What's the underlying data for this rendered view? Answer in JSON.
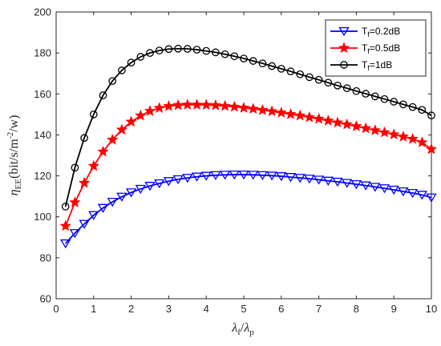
{
  "chart_data": {
    "type": "line",
    "xlabel": "λf/λp",
    "ylabel": "ηEE(bit/s/m⁻²/w)",
    "xlim": [
      0,
      10
    ],
    "ylim": [
      60,
      200
    ],
    "xticks": [
      0,
      1,
      2,
      3,
      4,
      5,
      6,
      7,
      8,
      9,
      10
    ],
    "yticks": [
      60,
      80,
      100,
      120,
      140,
      160,
      180,
      200
    ],
    "grid": false,
    "legend_position": "top-right",
    "x": [
      0.25,
      0.5,
      0.75,
      1.0,
      1.25,
      1.5,
      1.75,
      2.0,
      2.25,
      2.5,
      2.75,
      3.0,
      3.25,
      3.5,
      3.75,
      4.0,
      4.25,
      4.5,
      4.75,
      5.0,
      5.25,
      5.5,
      5.75,
      6.0,
      6.25,
      6.5,
      6.75,
      7.0,
      7.25,
      7.5,
      7.75,
      8.0,
      8.25,
      8.5,
      8.75,
      9.0,
      9.25,
      9.5,
      9.75,
      10.0
    ],
    "series": [
      {
        "name": "Tf=0.2dB",
        "name_parts": [
          "T",
          "f",
          "=0.2dB"
        ],
        "color": "#0000ff",
        "marker": "triangle-down",
        "values": [
          87.0,
          92.0,
          96.5,
          100.8,
          104.3,
          107.3,
          109.8,
          111.9,
          113.6,
          115.1,
          116.3,
          117.4,
          118.3,
          119.0,
          119.6,
          120.0,
          120.3,
          120.5,
          120.6,
          120.6,
          120.5,
          120.3,
          120.1,
          119.8,
          119.4,
          119.0,
          118.6,
          118.1,
          117.6,
          117.1,
          116.5,
          115.9,
          115.3,
          114.6,
          113.9,
          113.2,
          112.4,
          111.6,
          110.7,
          109.4
        ]
      },
      {
        "name": "Tf=0.5dB",
        "name_parts": [
          "T",
          "f",
          "=0.5dB"
        ],
        "color": "#ff0000",
        "marker": "star",
        "values": [
          95.5,
          107.0,
          116.5,
          124.8,
          131.8,
          137.6,
          142.5,
          146.4,
          149.4,
          151.6,
          153.1,
          154.0,
          154.5,
          154.7,
          154.7,
          154.6,
          154.4,
          154.1,
          153.7,
          153.2,
          152.7,
          152.1,
          151.5,
          150.8,
          150.1,
          149.4,
          148.6,
          147.8,
          146.9,
          146.0,
          145.1,
          144.2,
          143.2,
          142.2,
          141.2,
          140.2,
          139.1,
          138.0,
          136.3,
          133.0
        ]
      },
      {
        "name": "Tf=1dB",
        "name_parts": [
          "T",
          "f",
          "=1dB"
        ],
        "color": "#000000",
        "marker": "circle",
        "values": [
          105.0,
          124.0,
          138.5,
          150.0,
          159.3,
          166.3,
          171.5,
          175.3,
          178.1,
          180.0,
          181.2,
          181.9,
          182.1,
          182.0,
          181.6,
          181.0,
          180.3,
          179.4,
          178.4,
          177.3,
          176.1,
          174.9,
          173.6,
          172.3,
          171.0,
          169.6,
          168.2,
          166.9,
          165.5,
          164.1,
          162.8,
          161.4,
          160.1,
          158.8,
          157.5,
          156.2,
          154.9,
          153.6,
          152.2,
          149.5
        ]
      }
    ]
  }
}
